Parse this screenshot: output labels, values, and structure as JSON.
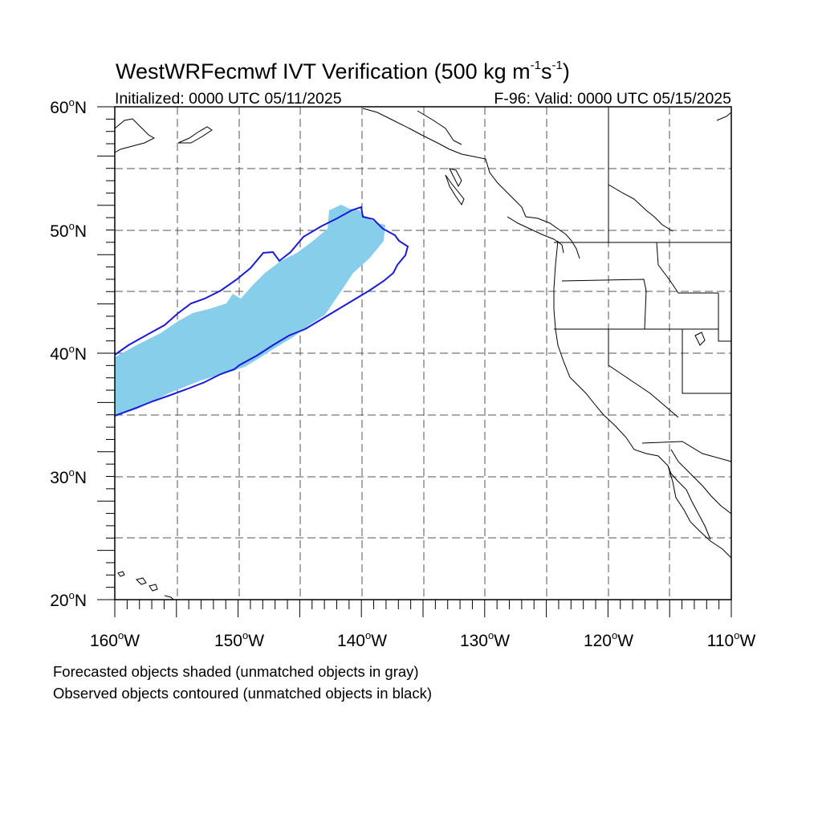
{
  "title": {
    "model": "WestWRFecmwf",
    "field": "IVT Verification (500 kg m",
    "unit_exp1": "-1",
    "unit_mid": "s",
    "unit_exp2": "-1",
    "close": ")"
  },
  "subtitle_left": "Initialized: 0000 UTC 05/11/2025",
  "subtitle_right": "F-96: Valid: 0000 UTC 05/15/2025",
  "lat_labels": [
    {
      "num": "60",
      "hemi": "N"
    },
    {
      "num": "50",
      "hemi": "N"
    },
    {
      "num": "40",
      "hemi": "N"
    },
    {
      "num": "30",
      "hemi": "N"
    },
    {
      "num": "20",
      "hemi": "N"
    }
  ],
  "lon_labels": [
    {
      "num": "160",
      "hemi": "W"
    },
    {
      "num": "150",
      "hemi": "W"
    },
    {
      "num": "140",
      "hemi": "W"
    },
    {
      "num": "130",
      "hemi": "W"
    },
    {
      "num": "120",
      "hemi": "W"
    },
    {
      "num": "110",
      "hemi": "W"
    }
  ],
  "legend": {
    "line1": "Forecasted objects shaded (unmatched objects in gray)",
    "line2": "Observed objects contoured (unmatched objects in black)"
  },
  "colors": {
    "forecast_fill": "#87ceea",
    "observed_contour": "#1a1ad8",
    "coastline": "#000000",
    "grid": "#555555"
  }
}
